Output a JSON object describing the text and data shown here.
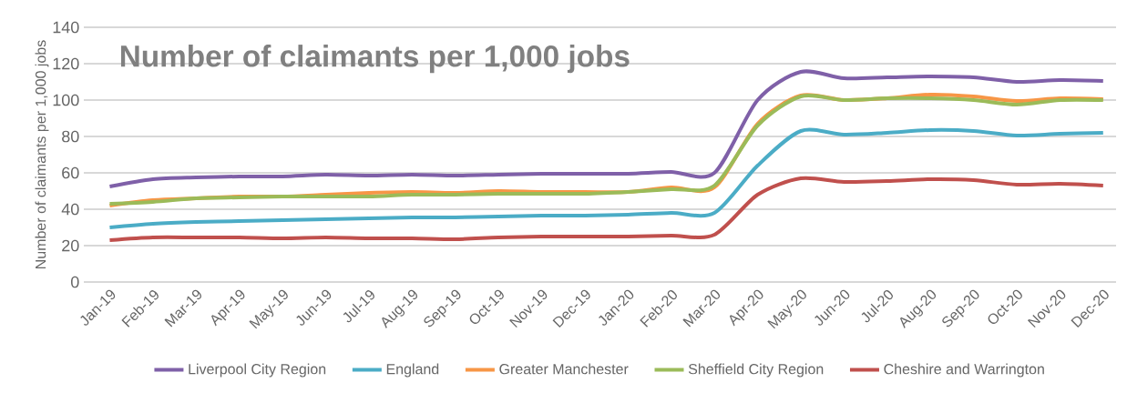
{
  "chart_data": {
    "type": "line",
    "title": "Number of claimants per 1,000 jobs",
    "ylabel": "Number of claimants per 1,000 jobs",
    "categories": [
      "Jan-19",
      "Feb-19",
      "Mar-19",
      "Apr-19",
      "May-19",
      "Jun-19",
      "Jul-19",
      "Aug-19",
      "Sep-19",
      "Oct-19",
      "Nov-19",
      "Dec-19",
      "Jan-20",
      "Feb-20",
      "Mar-20",
      "Apr-20",
      "May-20",
      "Jun-20",
      "Jul-20",
      "Aug-20",
      "Sep-20",
      "Oct-20",
      "Nov-20",
      "Dec-20"
    ],
    "series": [
      {
        "name": "Liverpool City Region",
        "color": "#7f60a8",
        "values": [
          52.5,
          56.5,
          57.5,
          58,
          58,
          59,
          58.5,
          59,
          58.5,
          59,
          59.5,
          59.5,
          59.5,
          60.5,
          60,
          100,
          115.5,
          112,
          112.5,
          113,
          112.5,
          110,
          111,
          110.5
        ]
      },
      {
        "name": "England",
        "color": "#4bacc6",
        "values": [
          30,
          32,
          33,
          33.5,
          34,
          34.5,
          35,
          35.5,
          35.5,
          36,
          36.5,
          36.5,
          37,
          38,
          38,
          64,
          83,
          81,
          82,
          83.5,
          83,
          80.5,
          81.5,
          82
        ]
      },
      {
        "name": "Greater Manchester",
        "color": "#f79646",
        "values": [
          42,
          45,
          46,
          47,
          47,
          48,
          49,
          49.5,
          49,
          50,
          49.5,
          49.5,
          49.5,
          52,
          52,
          87,
          102.5,
          100,
          101,
          103,
          102,
          99.5,
          101,
          100.5
        ]
      },
      {
        "name": "Sheffield City Region",
        "color": "#9bbb59",
        "values": [
          43,
          44,
          46,
          46.5,
          47,
          47,
          47,
          48,
          48,
          48.5,
          48.5,
          48.5,
          49.5,
          51,
          53,
          86,
          102,
          100,
          101,
          101,
          100,
          97.5,
          100,
          100
        ]
      },
      {
        "name": "Cheshire and Warrington",
        "color": "#c0504d",
        "values": [
          23,
          24.5,
          24.5,
          24.5,
          24,
          24.5,
          24,
          24,
          23.5,
          24.5,
          25,
          25,
          25,
          25.5,
          26,
          48,
          57,
          55,
          55.5,
          56.5,
          56,
          53.5,
          54,
          53
        ]
      }
    ],
    "ylim": [
      0,
      140
    ],
    "yticks": [
      0,
      20,
      40,
      60,
      80,
      100,
      120,
      140
    ],
    "grid": "y",
    "legend": "bottom",
    "marker": "none",
    "line_style": "solid"
  }
}
